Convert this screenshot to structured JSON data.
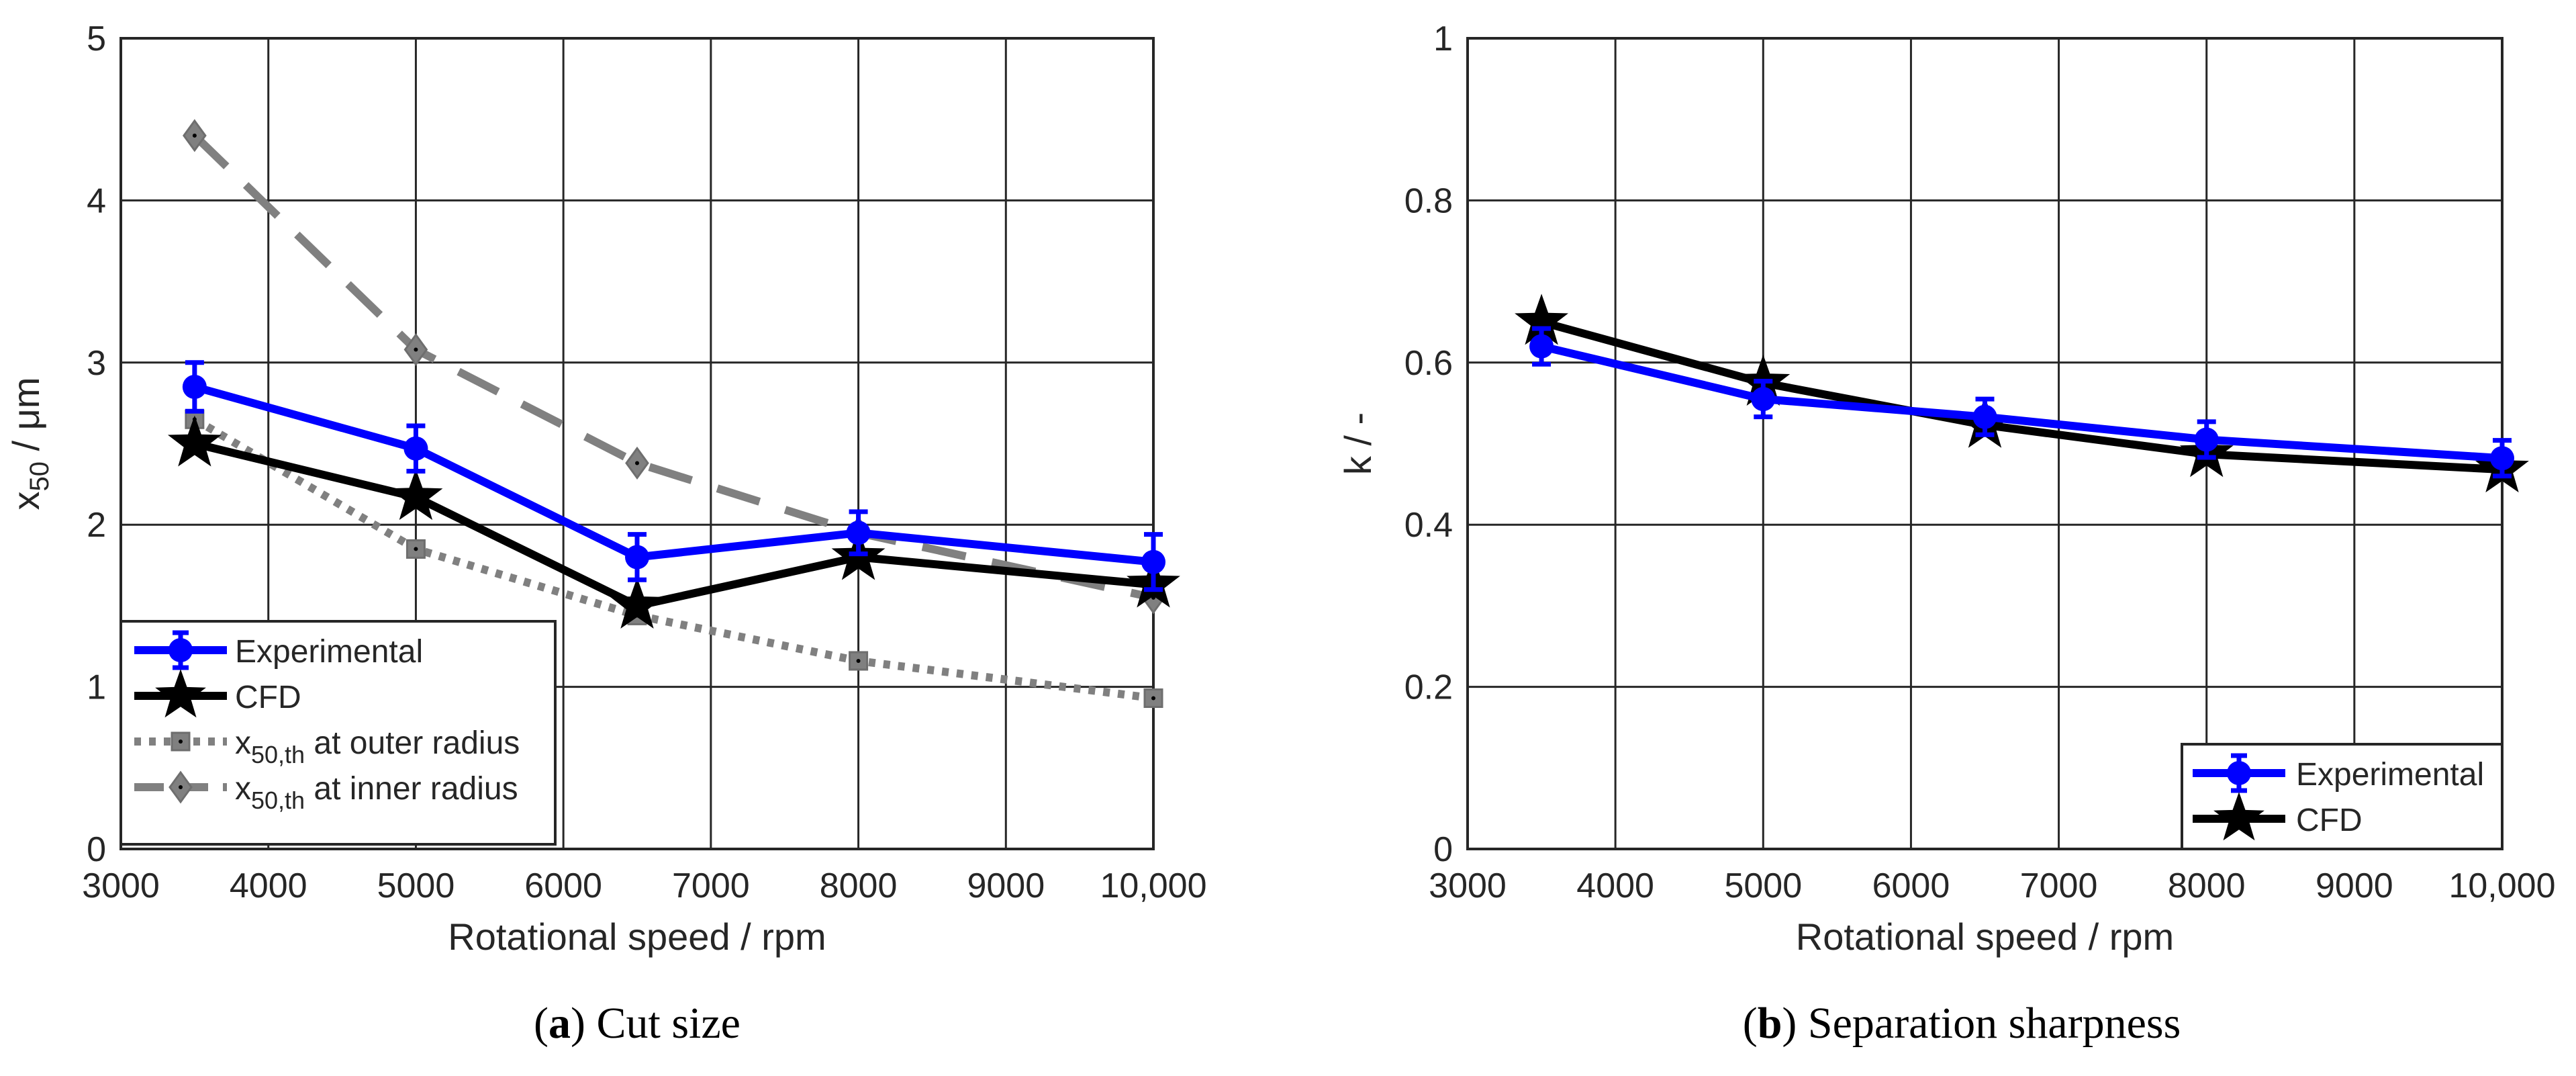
{
  "chart_data": [
    {
      "type": "line",
      "caption": {
        "label": "a",
        "text": " Cut size"
      },
      "xlabel": "Rotational speed / rpm",
      "ylabel": {
        "main": "x",
        "sub": "50",
        "rest": "  /  μm"
      },
      "xlim": [
        3000,
        10000
      ],
      "ylim": [
        0,
        5
      ],
      "xticks": [
        3000,
        4000,
        5000,
        6000,
        7000,
        8000,
        9000,
        10000
      ],
      "xtick_labels": [
        "3000",
        "4000",
        "5000",
        "6000",
        "7000",
        "8000",
        "9000",
        "10,000"
      ],
      "yticks": [
        0,
        1,
        2,
        3,
        4,
        5
      ],
      "ytick_labels": [
        "0",
        "1",
        "2",
        "3",
        "4",
        "5"
      ],
      "grid": true,
      "legend_position": "bottom-left",
      "series": [
        {
          "name": "Experimental",
          "legend": {
            "main": "Experimental",
            "sub": "",
            "rest": ""
          },
          "color": "#0000ff",
          "style": "solid",
          "marker": "circle",
          "x": [
            3500,
            5000,
            6500,
            8000,
            10000
          ],
          "y": [
            2.85,
            2.47,
            1.8,
            1.95,
            1.77
          ],
          "error": [
            0.15,
            0.14,
            0.14,
            0.13,
            0.17
          ]
        },
        {
          "name": "CFD",
          "legend": {
            "main": "CFD",
            "sub": "",
            "rest": ""
          },
          "color": "#000000",
          "style": "solid",
          "marker": "star",
          "x": [
            3500,
            5000,
            6500,
            8000,
            10000
          ],
          "y": [
            2.5,
            2.17,
            1.5,
            1.8,
            1.63
          ]
        },
        {
          "name": "x50,th at outer radius",
          "legend": {
            "main": "x",
            "sub": "50,th",
            "rest": " at outer radius"
          },
          "color": "#808080",
          "style": "dotted",
          "marker": "square",
          "x": [
            3500,
            5000,
            6500,
            8000,
            10000
          ],
          "y": [
            2.65,
            1.85,
            1.44,
            1.16,
            0.93
          ]
        },
        {
          "name": "x50,th at inner radius",
          "legend": {
            "main": "x",
            "sub": "50,th",
            "rest": " at inner radius"
          },
          "color": "#808080",
          "style": "dashed",
          "marker": "diamond",
          "x": [
            3500,
            5000,
            6500,
            8000,
            10000
          ],
          "y": [
            4.4,
            3.08,
            2.38,
            1.95,
            1.55
          ]
        }
      ]
    },
    {
      "type": "line",
      "caption": {
        "label": "b",
        "text": " Separation sharpness"
      },
      "xlabel": "Rotational speed / rpm",
      "ylabel": {
        "main": "k / -",
        "sub": "",
        "rest": ""
      },
      "xlim": [
        3000,
        10000
      ],
      "ylim": [
        0,
        1
      ],
      "xticks": [
        3000,
        4000,
        5000,
        6000,
        7000,
        8000,
        9000,
        10000
      ],
      "xtick_labels": [
        "3000",
        "4000",
        "5000",
        "6000",
        "7000",
        "8000",
        "9000",
        "10,000"
      ],
      "yticks": [
        0,
        0.2,
        0.4,
        0.6,
        0.8,
        1
      ],
      "ytick_labels": [
        "0",
        "0.2",
        "0.4",
        "0.6",
        "0.8",
        "1"
      ],
      "grid": true,
      "legend_position": "bottom-right",
      "series": [
        {
          "name": "Experimental",
          "legend": {
            "main": "Experimental",
            "sub": "",
            "rest": ""
          },
          "color": "#0000ff",
          "style": "solid",
          "marker": "circle",
          "x": [
            3500,
            5000,
            6500,
            8000,
            10000
          ],
          "y": [
            0.62,
            0.555,
            0.533,
            0.505,
            0.482
          ],
          "error": [
            0.022,
            0.022,
            0.022,
            0.022,
            0.022
          ]
        },
        {
          "name": "CFD",
          "legend": {
            "main": "CFD",
            "sub": "",
            "rest": ""
          },
          "color": "#000000",
          "style": "solid",
          "marker": "star",
          "x": [
            3500,
            5000,
            6500,
            8000,
            10000
          ],
          "y": [
            0.65,
            0.575,
            0.523,
            0.487,
            0.468
          ]
        }
      ]
    }
  ]
}
